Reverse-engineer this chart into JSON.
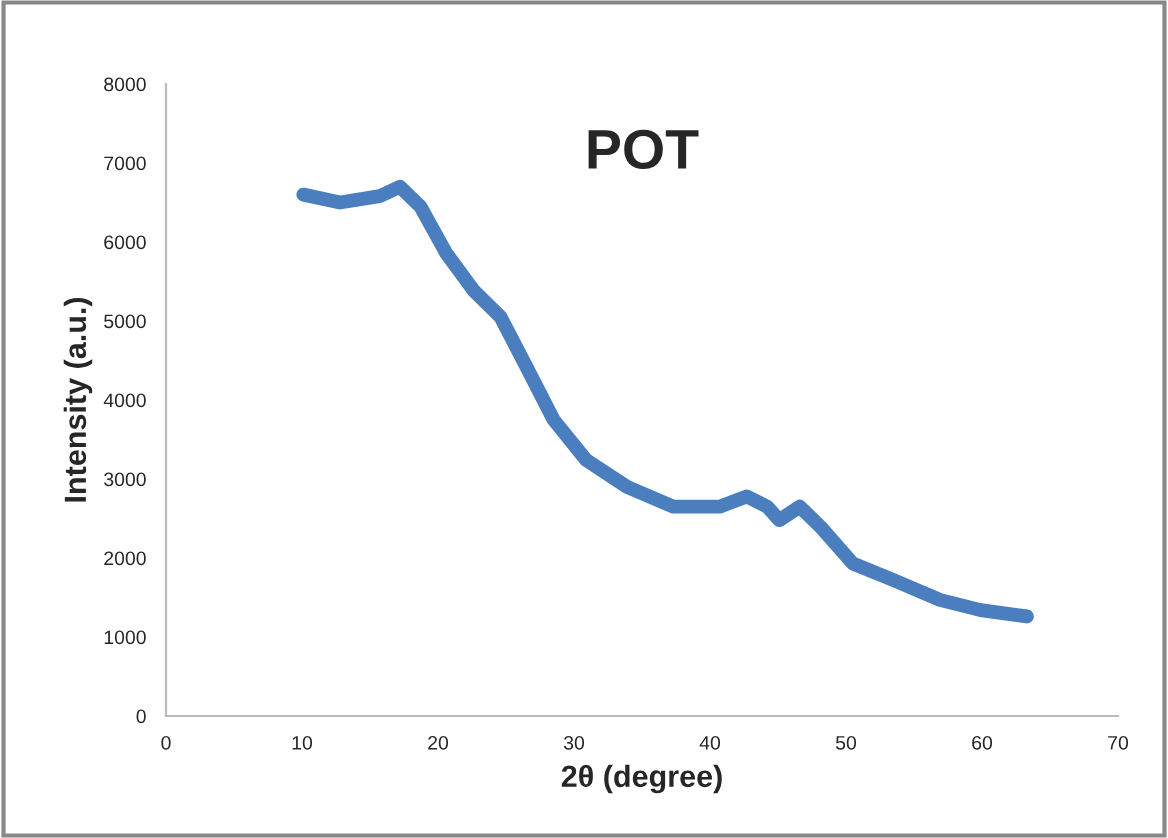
{
  "chart_data": {
    "type": "line",
    "title": "POT",
    "xlabel": "2θ (degree)",
    "ylabel": "Intensity (a.u.)",
    "series": [
      {
        "color": "#4a7ebf",
        "x": [
          10.1,
          12.8,
          15.7,
          17.2,
          18.7,
          20.6,
          22.6,
          24.6,
          26.5,
          28.5,
          30.9,
          33.9,
          37.3,
          40.7,
          42.7,
          44.2,
          45.1,
          46.6,
          48.1,
          50.5,
          53.5,
          56.9,
          59.9,
          63.3
        ],
        "values": [
          6600,
          6500,
          6580,
          6700,
          6450,
          5860,
          5390,
          5050,
          4420,
          3750,
          3240,
          2900,
          2650,
          2650,
          2780,
          2650,
          2480,
          2650,
          2400,
          1930,
          1720,
          1470,
          1340,
          1260
        ]
      }
    ],
    "xlim": [
      0,
      70
    ],
    "xticks": [
      0,
      10,
      20,
      30,
      40,
      50,
      60,
      70
    ],
    "ylim": [
      0,
      8000
    ],
    "yticks": [
      0,
      1000,
      2000,
      3000,
      4000,
      5000,
      6000,
      7000,
      8000
    ],
    "grid": false,
    "legend": false
  }
}
